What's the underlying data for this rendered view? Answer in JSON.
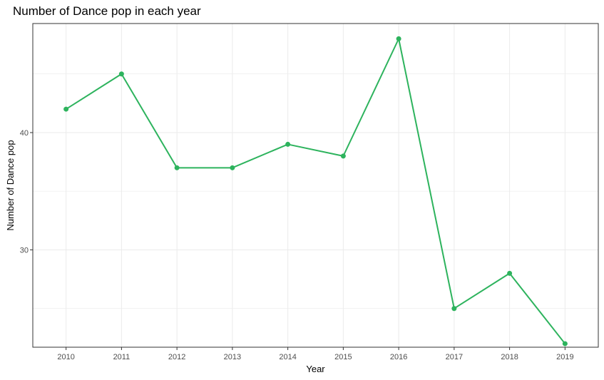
{
  "chart_data": {
    "type": "line",
    "title": "Number of Dance pop in each year",
    "xlabel": "Year",
    "ylabel": "Number of Dance pop",
    "categories": [
      "2010",
      "2011",
      "2012",
      "2013",
      "2014",
      "2015",
      "2016",
      "2017",
      "2018",
      "2019"
    ],
    "values": [
      42,
      45,
      37,
      37,
      39,
      38,
      48,
      25,
      28,
      22
    ],
    "ylim": [
      21.7,
      49.3
    ],
    "yticks": [
      "30",
      "40"
    ],
    "grid": true,
    "colors": {
      "line": "#2db35d",
      "grid": "#ebebeb",
      "panel_border": "#333333"
    }
  }
}
